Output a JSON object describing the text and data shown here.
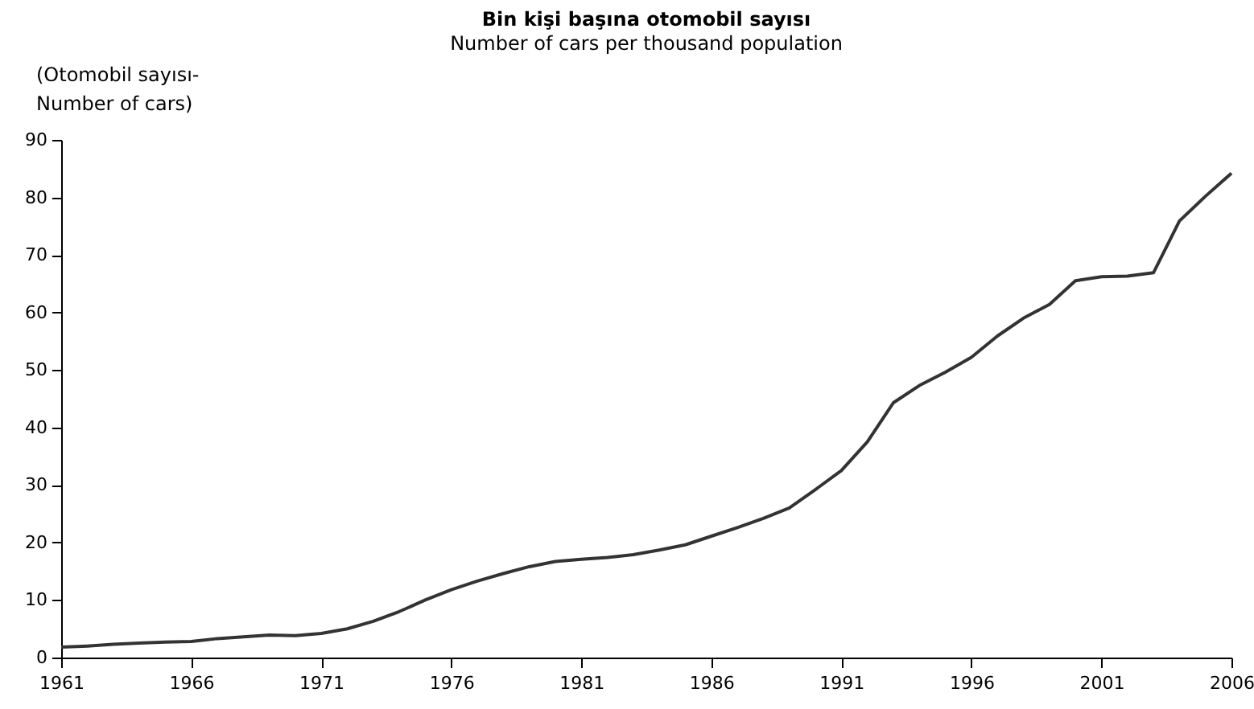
{
  "chart_data": {
    "type": "line",
    "title": "Bin kişi başına otomobil sayısı",
    "subtitle": "Number of cars per thousand population",
    "ylabel": "(Otomobil sayısı-\nNumber of cars)",
    "x": [
      1961,
      1962,
      1963,
      1964,
      1965,
      1966,
      1967,
      1968,
      1969,
      1970,
      1971,
      1972,
      1973,
      1974,
      1975,
      1976,
      1977,
      1978,
      1979,
      1980,
      1981,
      1982,
      1983,
      1984,
      1985,
      1986,
      1987,
      1988,
      1989,
      1990,
      1991,
      1992,
      1993,
      1994,
      1995,
      1996,
      1997,
      1998,
      1999,
      2000,
      2001,
      2002,
      2003,
      2004,
      2005,
      2006
    ],
    "series": [
      {
        "color": "#333333",
        "values": [
          1.8,
          2.0,
          2.3,
          2.5,
          2.7,
          2.8,
          3.3,
          3.6,
          3.9,
          3.8,
          4.2,
          5.0,
          6.3,
          8.0,
          10.0,
          11.8,
          13.3,
          14.6,
          15.8,
          16.7,
          17.1,
          17.4,
          17.9,
          18.7,
          19.6,
          21.1,
          22.6,
          24.2,
          26.0,
          29.2,
          32.5,
          37.5,
          44.3,
          47.3,
          49.6,
          52.2,
          55.9,
          59.0,
          61.4,
          65.5,
          66.2,
          66.3,
          66.9,
          75.9,
          80.2,
          84.2
        ]
      }
    ],
    "xlim": [
      1961,
      2006
    ],
    "xticks": [
      1961,
      1966,
      1971,
      1976,
      1981,
      1986,
      1991,
      1996,
      2001,
      2006
    ],
    "ylim": [
      0,
      90
    ],
    "yticks": [
      0,
      10,
      20,
      30,
      40,
      50,
      60,
      70,
      80,
      90
    ],
    "grid": false,
    "legend": false,
    "marker": "none",
    "line_style": "solid"
  }
}
